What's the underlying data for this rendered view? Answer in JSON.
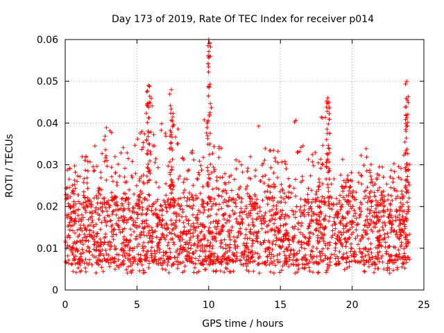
{
  "chart_data": {
    "type": "scatter",
    "title": "Day 173 of 2019, Rate Of TEC Index for receiver p014",
    "xlabel": "GPS time / hours",
    "ylabel": "ROTI / TECUs",
    "xlim": [
      0,
      25
    ],
    "ylim": [
      0,
      0.06
    ],
    "x_ticks": [
      0,
      5,
      10,
      15,
      20,
      25
    ],
    "y_ticks": [
      0,
      0.01,
      0.02,
      0.03,
      0.04,
      0.05,
      0.06
    ],
    "x_tick_labels": [
      "0",
      "5",
      "10",
      "15",
      "20",
      "25"
    ],
    "y_tick_labels": [
      "0",
      "0.01",
      "0.02",
      "0.03",
      "0.04",
      "0.05",
      "0.06"
    ],
    "grid": true,
    "marker": "+",
    "series_color": "#ff0000",
    "series": [
      {
        "name": "ROTI",
        "x_range": [
          0,
          24
        ],
        "baseline_min": 0.004,
        "bulk_range": [
          0.006,
          0.022
        ],
        "envelope": [
          [
            0.0,
            0.032
          ],
          [
            0.5,
            0.028
          ],
          [
            1.0,
            0.034
          ],
          [
            1.5,
            0.033
          ],
          [
            2.0,
            0.035
          ],
          [
            2.5,
            0.032
          ],
          [
            2.9,
            0.041
          ],
          [
            3.5,
            0.036
          ],
          [
            4.0,
            0.037
          ],
          [
            4.5,
            0.033
          ],
          [
            5.0,
            0.036
          ],
          [
            5.5,
            0.04
          ],
          [
            5.8,
            0.049
          ],
          [
            6.2,
            0.043
          ],
          [
            6.8,
            0.042
          ],
          [
            7.2,
            0.043
          ],
          [
            7.5,
            0.048
          ],
          [
            7.8,
            0.04
          ],
          [
            8.5,
            0.033
          ],
          [
            9.0,
            0.034
          ],
          [
            9.5,
            0.039
          ],
          [
            10.0,
            0.06
          ],
          [
            10.3,
            0.039
          ],
          [
            11.0,
            0.034
          ],
          [
            12.0,
            0.033
          ],
          [
            13.0,
            0.033
          ],
          [
            13.5,
            0.04
          ],
          [
            14.0,
            0.034
          ],
          [
            15.0,
            0.034
          ],
          [
            15.5,
            0.03
          ],
          [
            16.0,
            0.041
          ],
          [
            16.5,
            0.04
          ],
          [
            17.0,
            0.035
          ],
          [
            17.5,
            0.038
          ],
          [
            18.2,
            0.046
          ],
          [
            18.8,
            0.036
          ],
          [
            19.5,
            0.03
          ],
          [
            20.0,
            0.028
          ],
          [
            20.5,
            0.032
          ],
          [
            21.0,
            0.034
          ],
          [
            21.5,
            0.028
          ],
          [
            22.0,
            0.03
          ],
          [
            22.5,
            0.035
          ],
          [
            23.0,
            0.033
          ],
          [
            23.5,
            0.031
          ],
          [
            23.8,
            0.05
          ],
          [
            24.0,
            0.03
          ]
        ],
        "spikes": [
          {
            "x": 5.8,
            "max": 0.049
          },
          {
            "x": 7.4,
            "max": 0.048
          },
          {
            "x": 10.0,
            "max": 0.06
          },
          {
            "x": 18.3,
            "max": 0.046
          },
          {
            "x": 23.8,
            "max": 0.05
          }
        ]
      }
    ]
  }
}
